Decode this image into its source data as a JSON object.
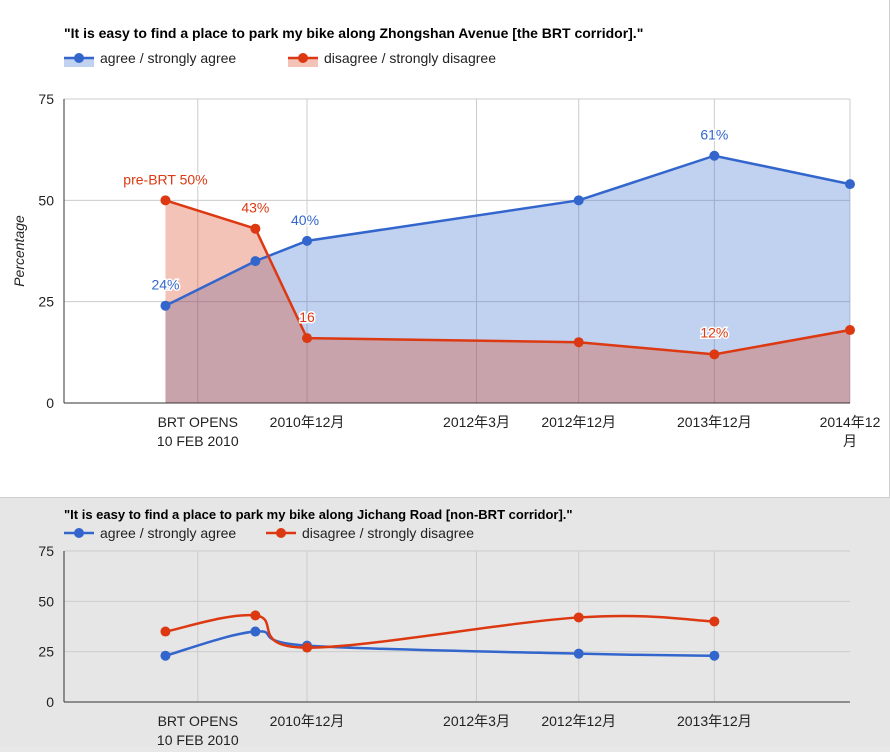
{
  "chart_data": [
    {
      "type": "area",
      "title": "\"It is easy to find a place to park my bike along Zhongshan Avenue [the BRT corridor].\"",
      "ylabel": "Percentage",
      "ylim": [
        0,
        75
      ],
      "yticks": [
        "0",
        "25",
        "50",
        "75"
      ],
      "xticks": [
        {
          "label": [
            "BRT OPENS",
            "10 FEB 2010"
          ],
          "x": "2010-02-10"
        },
        {
          "label": [
            "2010年12月"
          ],
          "x": "2010-12-01"
        },
        {
          "label": [
            "2012年3月"
          ],
          "x": "2012-03-01"
        },
        {
          "label": [
            "2012年12月"
          ],
          "x": "2012-12-01"
        },
        {
          "label": [
            "2013年12月"
          ],
          "x": "2013-12-01"
        },
        {
          "label": [
            "2014年12",
            "月"
          ],
          "x": "2014-12-01"
        }
      ],
      "grid": true,
      "legend": "top-left",
      "series": [
        {
          "name": "agree / strongly agree",
          "color": "#3366cc",
          "points": [
            {
              "x": "2009-11-15",
              "y": 24,
              "label": "24%"
            },
            {
              "x": "2010-07-15",
              "y": 35,
              "label": ""
            },
            {
              "x": "2010-12-01",
              "y": 40,
              "label": "40%"
            },
            {
              "x": "2012-12-01",
              "y": 50,
              "label": ""
            },
            {
              "x": "2013-12-01",
              "y": 61,
              "label": "61%"
            },
            {
              "x": "2014-12-01",
              "y": 54,
              "label": ""
            }
          ]
        },
        {
          "name": "disagree / strongly disagree",
          "color": "#dc3912",
          "points": [
            {
              "x": "2009-11-15",
              "y": 50,
              "label": "pre-BRT 50%"
            },
            {
              "x": "2010-07-15",
              "y": 43,
              "label": "43%"
            },
            {
              "x": "2010-12-01",
              "y": 16,
              "label": "16"
            },
            {
              "x": "2012-12-01",
              "y": 15,
              "label": ""
            },
            {
              "x": "2013-12-01",
              "y": 12,
              "label": "12%"
            },
            {
              "x": "2014-12-01",
              "y": 18,
              "label": ""
            }
          ]
        }
      ]
    },
    {
      "type": "line",
      "title": "\"It is easy to find a place to park my bike along Jichang Road [non-BRT corridor].\"",
      "ylabel": "",
      "ylim": [
        0,
        75
      ],
      "yticks": [
        "0",
        "25",
        "50",
        "75"
      ],
      "xticks": [
        {
          "label": [
            "BRT OPENS",
            "10 FEB 2010"
          ],
          "x": "2010-02-10"
        },
        {
          "label": [
            "2010年12月"
          ],
          "x": "2010-12-01"
        },
        {
          "label": [
            "2012年3月"
          ],
          "x": "2012-03-01"
        },
        {
          "label": [
            "2012年12月"
          ],
          "x": "2012-12-01"
        },
        {
          "label": [
            "2013年12月"
          ],
          "x": "2013-12-01"
        }
      ],
      "grid": true,
      "legend": "top-left",
      "series": [
        {
          "name": "agree / strongly agree",
          "color": "#3366cc",
          "points": [
            {
              "x": "2009-11-15",
              "y": 23
            },
            {
              "x": "2010-07-15",
              "y": 35
            },
            {
              "x": "2010-12-01",
              "y": 28
            },
            {
              "x": "2012-12-01",
              "y": 24
            },
            {
              "x": "2013-12-01",
              "y": 23
            }
          ]
        },
        {
          "name": "disagree / strongly disagree",
          "color": "#dc3912",
          "points": [
            {
              "x": "2009-11-15",
              "y": 35
            },
            {
              "x": "2010-07-15",
              "y": 43
            },
            {
              "x": "2010-12-01",
              "y": 27
            },
            {
              "x": "2012-12-01",
              "y": 42
            },
            {
              "x": "2013-12-01",
              "y": 40
            }
          ]
        }
      ]
    }
  ]
}
